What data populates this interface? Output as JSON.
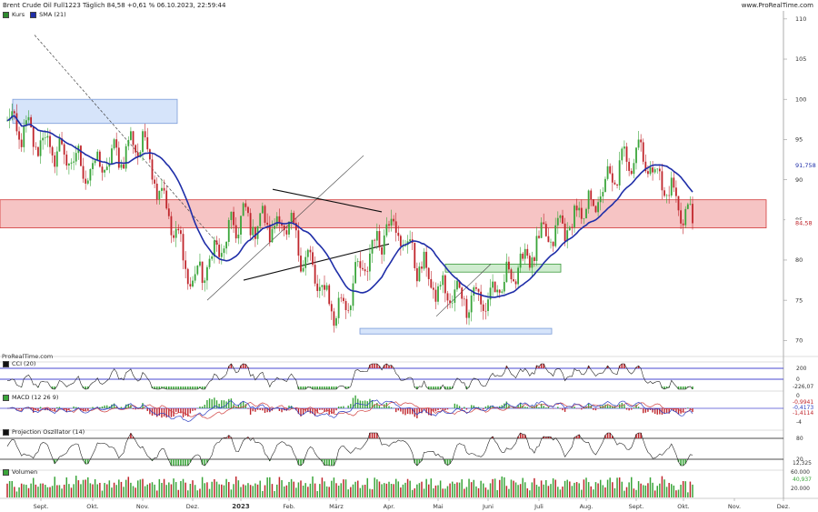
{
  "header": {
    "title": "Brent Crude Oil Full1223 Täglich 84,58 +0,61 % 06.10.2023, 22:59:44",
    "site": "www.ProRealTime.com"
  },
  "price_legend": [
    {
      "label": "Kurs",
      "color": "#2e8b2e"
    },
    {
      "label": "SMA (21)",
      "color": "#1f2ea8"
    }
  ],
  "watermark": "ProRealTime.com",
  "panels": {
    "cci": {
      "label": "CCI (20)",
      "value_label": "-226,07"
    },
    "macd": {
      "label": "MACD (12 26 9)",
      "value_labels": [
        "-0,9941",
        "-0,4173",
        "-1,4114"
      ]
    },
    "proj": {
      "label": "Projection Oszillator (14)",
      "value_label": "12,325"
    },
    "vol": {
      "label": "Volumen",
      "value_label": "40,937"
    }
  },
  "price_labels": {
    "sma": "91,758",
    "last": "84,58"
  },
  "colors": {
    "up": "#3aa53a",
    "down": "#c0262c",
    "sma": "#1f2ea8",
    "zone_red": "#f6c4c4",
    "zone_blue": "#d6e4fa",
    "zone_green": "#cfeccf"
  },
  "chart_data": {
    "type": "candlestick",
    "title": "Brent Crude Oil Full1223 Täglich",
    "x_ticks": [
      "Sept.",
      "Okt.",
      "Nov.",
      "Dez.",
      "2023",
      "Feb.",
      "März",
      "Apr.",
      "Mai",
      "Juni",
      "Juli",
      "Aug.",
      "Sept.",
      "Okt.",
      "Nov.",
      "Dez."
    ],
    "y_axis": {
      "ticks": [
        110,
        105,
        100,
        95,
        90,
        85,
        80,
        75,
        70
      ],
      "ylim": [
        68,
        111
      ]
    },
    "sma_period": 21,
    "monthly_price_path": [
      {
        "x": "Sept.",
        "close": 97
      },
      {
        "x": "Okt.",
        "close": 91
      },
      {
        "x": "Nov.",
        "close": 95
      },
      {
        "x": "Dez.",
        "close": 77
      },
      {
        "x": "2023",
        "close": 85
      },
      {
        "x": "Feb.",
        "close": 84
      },
      {
        "x": "März",
        "close": 73
      },
      {
        "x": "Apr.",
        "close": 85
      },
      {
        "x": "Mai",
        "close": 76
      },
      {
        "x": "Juni",
        "close": 75
      },
      {
        "x": "Juli",
        "close": 82
      },
      {
        "x": "Aug.",
        "close": 86
      },
      {
        "x": "Sept.",
        "close": 94
      },
      {
        "x": "Okt.",
        "close": 84.58
      }
    ],
    "last_close": 84.58,
    "sma_last": 91.758,
    "zones": [
      {
        "type": "resistance",
        "y_low": 84,
        "y_high": 87.5
      },
      {
        "type": "resistance",
        "y_low": 97,
        "y_high": 100
      },
      {
        "type": "support",
        "y_low": 70.8,
        "y_high": 71.5
      },
      {
        "type": "support",
        "y_low": 78.5,
        "y_high": 79.5
      }
    ],
    "indicators": {
      "cci": {
        "ticks": [
          200,
          0
        ],
        "last": -226.07
      },
      "macd": {
        "ticks": [
          0,
          -4
        ],
        "macd": -0.9941,
        "signal": -0.4173,
        "histogram": -1.4114
      },
      "projection": {
        "ticks": [
          80,
          20
        ],
        "last": 12.325
      },
      "volume": {
        "ticks": [
          "60.000",
          "20.000"
        ],
        "last": "40,937"
      }
    }
  }
}
